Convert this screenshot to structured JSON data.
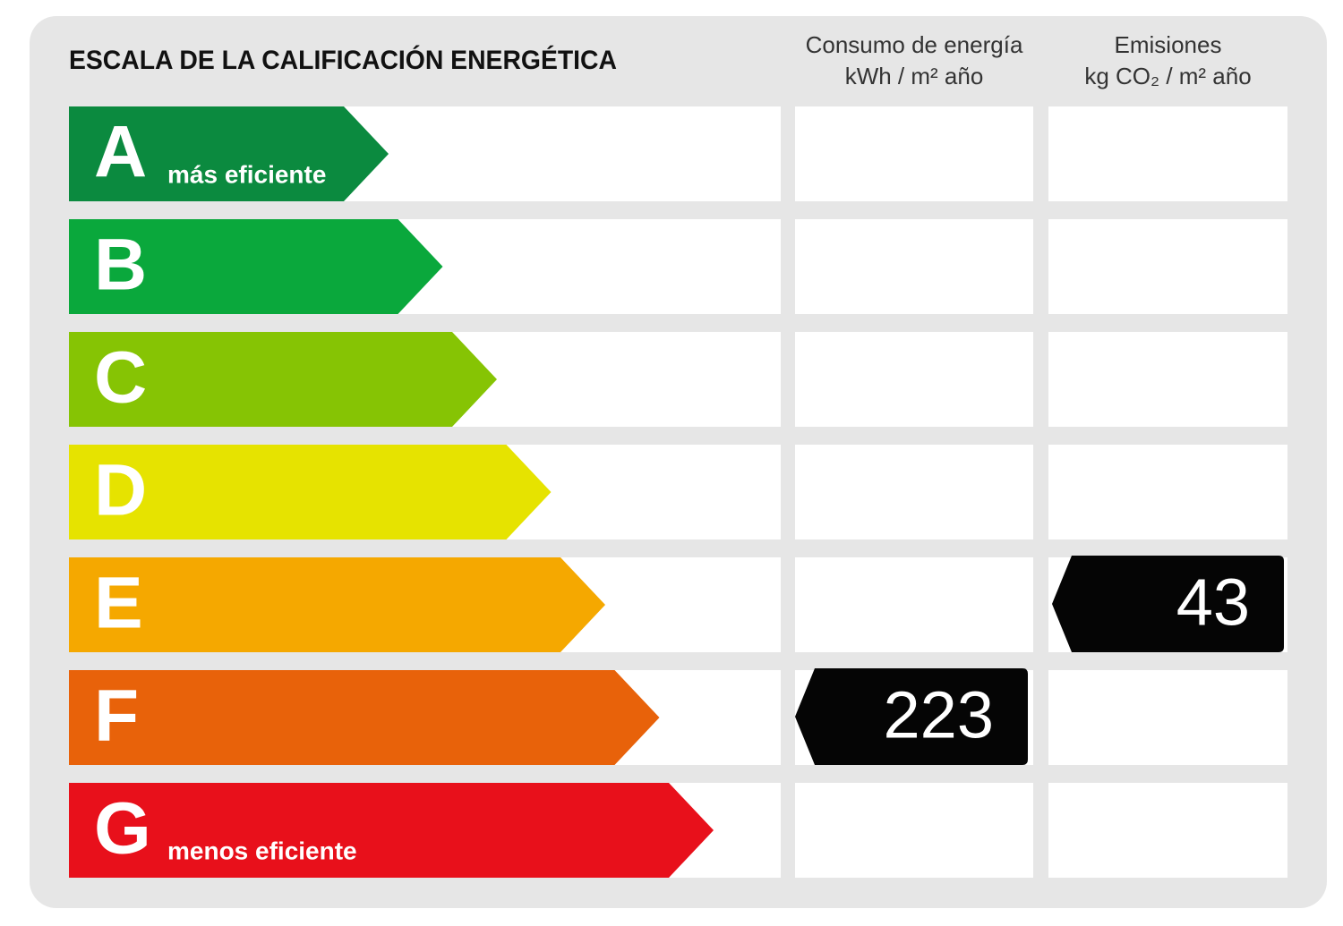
{
  "title": "ESCALA DE LA CALIFICACIÓN ENERGÉTICA",
  "rows": [
    {
      "letter": "A",
      "note": "más eficiente",
      "color": "#0b8a3f"
    },
    {
      "letter": "B",
      "color": "#0aa83c"
    },
    {
      "letter": "C",
      "color": "#86c404"
    },
    {
      "letter": "D",
      "color": "#e6e300"
    },
    {
      "letter": "E",
      "color": "#f5a800"
    },
    {
      "letter": "F",
      "color": "#e8620a"
    },
    {
      "letter": "G",
      "note": "menos eficiente",
      "color": "#e8101b"
    }
  ],
  "columns": [
    {
      "header": [
        "Consumo de energía",
        "kWh / m² año"
      ],
      "values": [
        null,
        null,
        null,
        null,
        null,
        223,
        null
      ]
    },
    {
      "header": [
        "Emisiones",
        "kg CO₂ / m² año"
      ],
      "values": [
        null,
        null,
        null,
        null,
        43,
        null,
        null
      ]
    }
  ]
}
